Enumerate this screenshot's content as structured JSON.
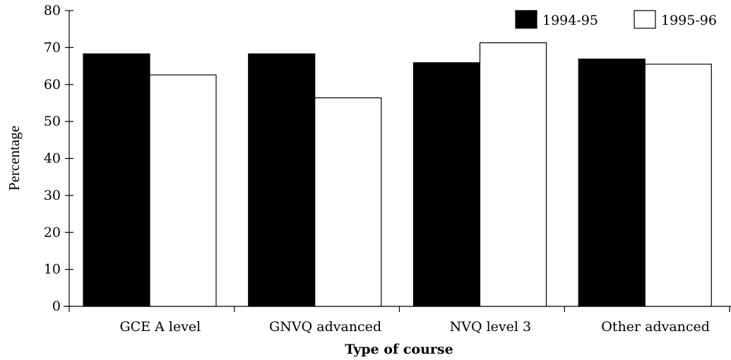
{
  "chart_data": {
    "type": "bar",
    "categories": [
      "GCE A level",
      "GNVQ advanced",
      "NVQ level 3",
      "Other advanced"
    ],
    "series": [
      {
        "name": "1994-95",
        "color": "#000000",
        "values": [
          68.3,
          68.3,
          65.9,
          66.9
        ]
      },
      {
        "name": "1995-96",
        "color": "#ffffff",
        "values": [
          62.6,
          56.4,
          71.3,
          65.5
        ]
      }
    ],
    "title": "",
    "xlabel": "Type of course",
    "ylabel": "Percentage",
    "ylim": [
      0,
      80
    ],
    "yticks": [
      "0",
      "10",
      "20",
      "30",
      "40",
      "50",
      "60",
      "70",
      "80"
    ],
    "grid": false,
    "legend_position": "top-right"
  }
}
